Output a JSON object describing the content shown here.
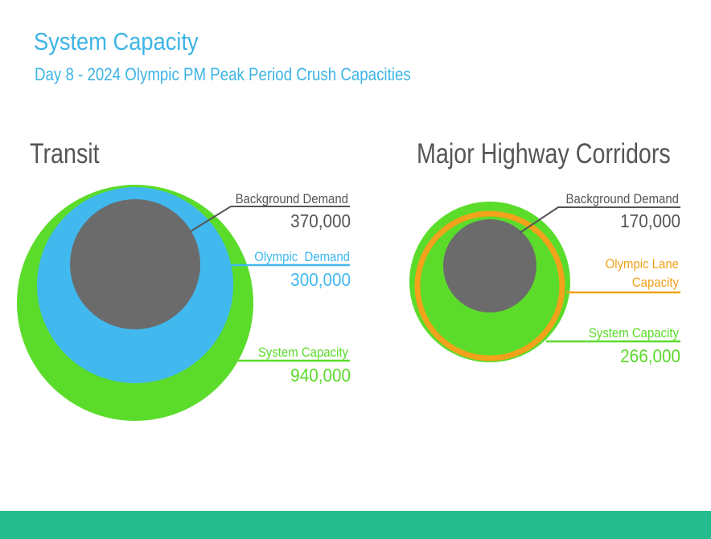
{
  "title": "System Capacity",
  "subtitle": "Day 8 - 2024 Olympic PM Peak Period Crush Capacities",
  "colors": {
    "accent": "#3db4e5",
    "system_capacity": "#5bdc2a",
    "olympic_demand": "#41b8ee",
    "background_demand": "#6b6b6b",
    "olympic_lane": "#f2a21b",
    "footer": "#25bd8d",
    "text_dark": "#555555"
  },
  "transit": {
    "heading": "Transit",
    "background_demand": {
      "label": "Background Demand",
      "value": "370,000"
    },
    "olympic_demand": {
      "label": "Olympic  Demand",
      "value": "300,000"
    },
    "system_capacity": {
      "label": "System Capacity",
      "value": "940,000"
    }
  },
  "highway": {
    "heading": "Major Highway Corridors",
    "background_demand": {
      "label": "Background Demand",
      "value": "170,000"
    },
    "olympic_lane": {
      "label_line1": "Olympic Lane",
      "label_line2": "Capacity"
    },
    "system_capacity": {
      "label": "System Capacity",
      "value": "266,000"
    }
  }
}
